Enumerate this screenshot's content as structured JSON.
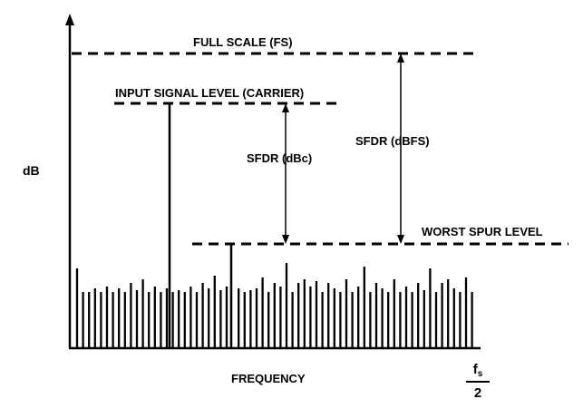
{
  "labels": {
    "full_scale": "FULL SCALE (FS)",
    "input_signal": "INPUT SIGNAL LEVEL (CARRIER)",
    "sfdr_dbc": "SFDR (dBc)",
    "sfdr_dbfs": "SFDR (dBFS)",
    "worst_spur": "WORST SPUR LEVEL",
    "y_axis": "dB",
    "x_axis": "FREQUENCY",
    "fs_half_num": "f",
    "fs_half_sub": "s",
    "fs_half_den": "2"
  },
  "colors": {
    "ink": "#000000",
    "background": "#ffffff"
  }
}
